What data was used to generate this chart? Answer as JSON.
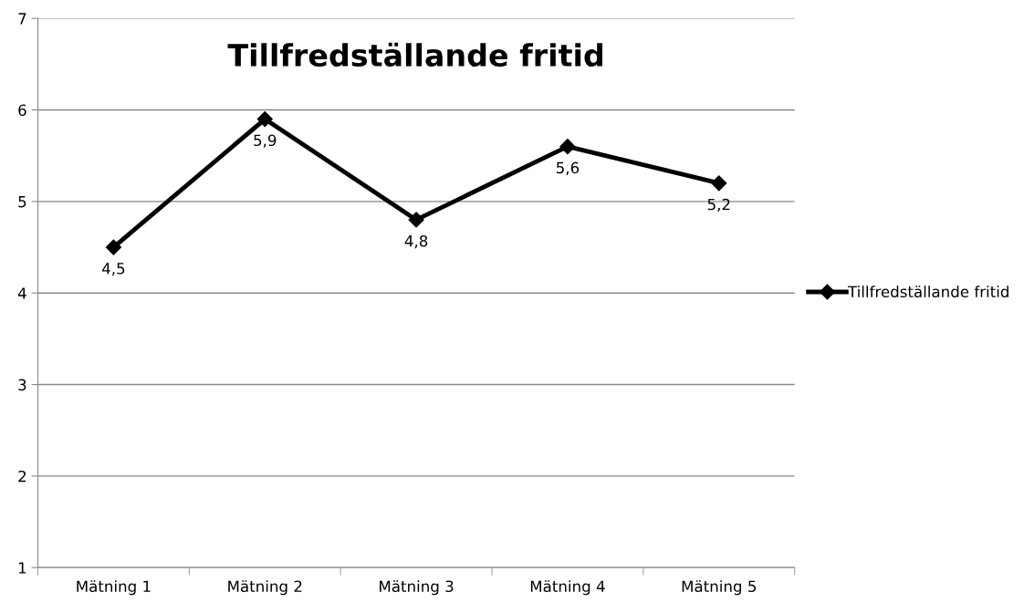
{
  "chart_data": {
    "type": "line",
    "title": "Tillfredställande fritid",
    "categories": [
      "Mätning 1",
      "Mätning 2",
      "Mätning 3",
      "Mätning 4",
      "Mätning 5"
    ],
    "series": [
      {
        "name": "Tillfredställande fritid",
        "color": "#000000",
        "values": [
          4.5,
          5.9,
          4.8,
          5.6,
          5.2
        ],
        "value_labels": [
          "4,5",
          "5,9",
          "4,8",
          "5,6",
          "5,2"
        ]
      }
    ],
    "ylim": [
      1,
      7
    ],
    "yticks": [
      1,
      2,
      3,
      4,
      5,
      6,
      7
    ],
    "grid": "y",
    "legend": "right",
    "marker": "diamond",
    "line_style": "solid"
  }
}
